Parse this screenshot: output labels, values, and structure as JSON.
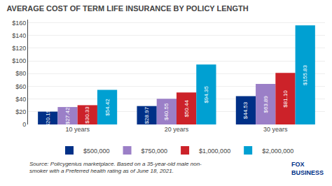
{
  "chart_data": {
    "type": "bar",
    "title": "AVERAGE COST OF TERM LIFE INSURANCE BY POLICY LENGTH",
    "categories": [
      "10 years",
      "20 years",
      "30 years"
    ],
    "series": [
      {
        "name": "$500,000",
        "color": "#003087",
        "values": [
          20.19,
          28.97,
          44.53
        ],
        "value_labels": [
          "$20.19",
          "$28.97",
          "$44.53"
        ]
      },
      {
        "name": "$750,000",
        "color": "#9b7fc7",
        "values": [
          27.42,
          40.55,
          63.89
        ],
        "value_labels": [
          "$27.42",
          "$40.55",
          "$63.89"
        ]
      },
      {
        "name": "$1,000,000",
        "color": "#cc2229",
        "values": [
          30.33,
          50.44,
          81.1
        ],
        "value_labels": [
          "$30.33",
          "$50.44",
          "$81.10"
        ]
      },
      {
        "name": "$2,000,000",
        "color": "#00a0d2",
        "values": [
          54.42,
          94.35,
          155.83
        ],
        "value_labels": [
          "$54.42",
          "$94.35",
          "$155.83"
        ]
      }
    ],
    "ylim": [
      0,
      165
    ],
    "yticks": [
      0,
      {
        "value": 20,
        "label": "$20"
      },
      {
        "value": 40,
        "label": "$40"
      },
      {
        "value": 60,
        "label": "$60"
      },
      {
        "value": 80,
        "label": "$80"
      },
      {
        "value": 100,
        "label": "$100"
      },
      {
        "value": 120,
        "label": "$120"
      },
      {
        "value": 140,
        "label": "$140"
      },
      {
        "value": 160,
        "label": "$160"
      }
    ],
    "grid": true,
    "legend": "bottom",
    "data_labels": true,
    "annotations": [
      "Source: Policygenius marketplace. Based on a 35-year-old male non-\nsmoker with a Preferred health rating as of June 18, 2021.",
      "FOX\nBUSINESS"
    ]
  }
}
